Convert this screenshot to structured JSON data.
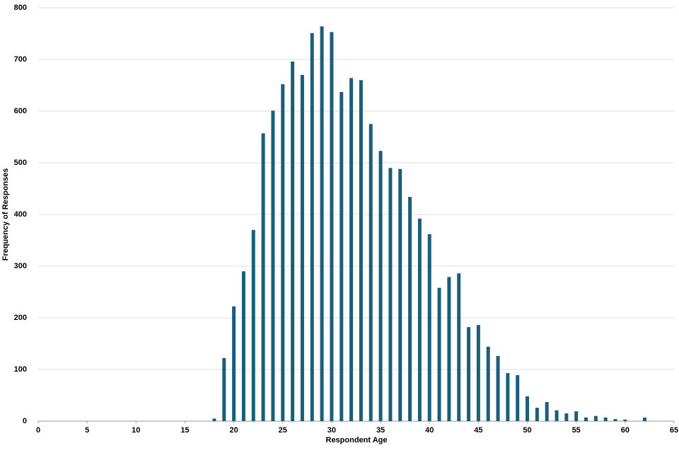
{
  "chart_data": {
    "type": "bar",
    "x_label": "Respondent Age",
    "y_label": "Frequency of Responses",
    "x": [
      18,
      19,
      20,
      21,
      22,
      23,
      24,
      25,
      26,
      27,
      28,
      29,
      30,
      31,
      32,
      33,
      34,
      35,
      36,
      37,
      38,
      39,
      40,
      41,
      42,
      43,
      44,
      45,
      46,
      47,
      48,
      49,
      50,
      51,
      52,
      53,
      54,
      55,
      56,
      57,
      58,
      59,
      60,
      62
    ],
    "values": [
      5,
      122,
      222,
      290,
      370,
      557,
      601,
      652,
      696,
      670,
      751,
      764,
      753,
      637,
      664,
      660,
      575,
      523,
      490,
      488,
      434,
      392,
      362,
      258,
      279,
      286,
      182,
      186,
      144,
      126,
      93,
      89,
      48,
      26,
      37,
      21,
      15,
      19,
      7,
      10,
      7,
      4,
      3,
      7
    ],
    "color": "#1b5e7b",
    "xlim": [
      0,
      65
    ],
    "xticks": [
      0,
      5,
      10,
      15,
      20,
      25,
      30,
      35,
      40,
      45,
      50,
      55,
      60,
      65
    ],
    "ylim": [
      0,
      800
    ],
    "yticks": [
      0,
      100,
      200,
      300,
      400,
      500,
      600,
      700,
      800
    ],
    "grid": true
  }
}
